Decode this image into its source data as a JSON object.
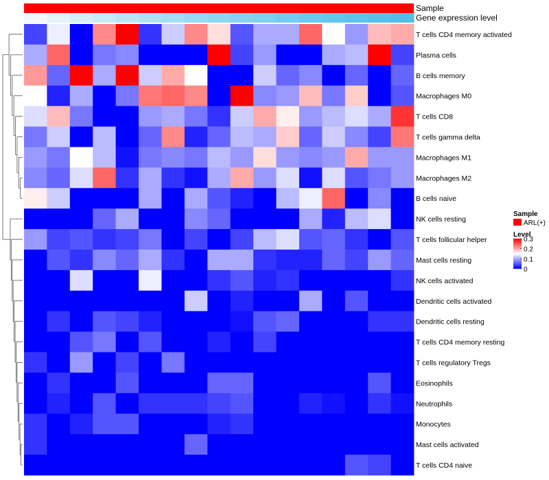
{
  "chart_data": {
    "type": "heatmap",
    "title": "",
    "annotations": {
      "sample_label": "Sample",
      "gene_label": "Gene expression level",
      "sample_color": "#ff0000",
      "gene_gradient": [
        "#f5f9fb",
        "#e4f3fa",
        "#d6eef8",
        "#c8e9f6",
        "#bbe5f5",
        "#b0e1f4",
        "#a5ddf3",
        "#9bd9f2",
        "#91d6f1",
        "#88d2f0",
        "#7fcfef",
        "#76cbee",
        "#6ec8ed",
        "#67c5ec",
        "#60c2eb",
        "#5ac0ea",
        "#55bde9",
        "#50bbe9"
      ]
    },
    "rows": [
      "T cells CD4 memory activated",
      "Plasma cells",
      "B cells memory",
      "Macrophages M0",
      "T cells CD8",
      "T cells gamma delta",
      "Macrophages M1",
      "Macrophages M2",
      "B cells naive",
      "NK cells resting",
      "T cells follicular helper",
      "Mast cells resting",
      "NK cells activated",
      "Dendritic cells activated",
      "Dendritic cells resting",
      "T cells CD4 memory resting",
      "T cells regulatory  Tregs",
      "Eosinophils",
      "Neutrophils",
      "Monocytes",
      "Mast cells activated",
      "T cells CD4 naive"
    ],
    "values": [
      [
        0.04,
        0.14,
        0.0,
        0.22,
        0.3,
        0.03,
        0.12,
        0.22,
        0.17,
        0.05,
        0.1,
        0.1,
        0.24,
        0.15,
        0.09,
        0.19,
        0.2
      ],
      [
        0.1,
        0.24,
        0.0,
        0.07,
        0.08,
        0.0,
        0.0,
        0.0,
        0.3,
        0.04,
        0.09,
        0.0,
        0.0,
        0.1,
        0.11,
        0.3,
        0.04
      ],
      [
        0.21,
        0.06,
        0.3,
        0.1,
        0.3,
        0.12,
        0.2,
        0.15,
        0.0,
        0.0,
        0.12,
        0.06,
        0.08,
        0.0,
        0.06,
        0.0,
        0.06
      ],
      [
        0.15,
        0.02,
        0.1,
        0.0,
        0.07,
        0.23,
        0.24,
        0.22,
        0.0,
        0.3,
        0.08,
        0.09,
        0.19,
        0.07,
        0.18,
        0.0,
        0.05
      ],
      [
        0.13,
        0.19,
        0.07,
        0.0,
        0.0,
        0.09,
        0.1,
        0.07,
        0.03,
        0.12,
        0.2,
        0.16,
        0.09,
        0.11,
        0.13,
        0.1,
        0.27
      ],
      [
        0.07,
        0.12,
        0.0,
        0.11,
        0.0,
        0.06,
        0.22,
        0.02,
        0.06,
        0.11,
        0.1,
        0.18,
        0.06,
        0.12,
        0.08,
        0.04,
        0.23
      ],
      [
        0.09,
        0.07,
        0.15,
        0.11,
        0.01,
        0.07,
        0.08,
        0.07,
        0.11,
        0.09,
        0.17,
        0.09,
        0.08,
        0.09,
        0.2,
        0.09,
        0.09
      ],
      [
        0.08,
        0.06,
        0.13,
        0.24,
        0.03,
        0.1,
        0.03,
        0.01,
        0.1,
        0.2,
        0.09,
        0.13,
        0.01,
        0.13,
        0.05,
        0.07,
        0.09
      ],
      [
        0.16,
        0.12,
        0.0,
        0.0,
        0.0,
        0.1,
        0.0,
        0.1,
        0.05,
        0.02,
        0.0,
        0.11,
        0.14,
        0.24,
        0.0,
        0.08,
        0.0
      ],
      [
        0.0,
        0.0,
        0.0,
        0.06,
        0.1,
        0.0,
        0.0,
        0.08,
        0.06,
        0.0,
        0.0,
        0.0,
        0.1,
        0.02,
        0.11,
        0.13,
        0.0
      ],
      [
        0.09,
        0.04,
        0.05,
        0.03,
        0.04,
        0.07,
        0.0,
        0.04,
        0.0,
        0.04,
        0.11,
        0.13,
        0.05,
        0.06,
        0.03,
        0.0,
        0.05
      ],
      [
        0.0,
        0.05,
        0.03,
        0.08,
        0.06,
        0.1,
        0.03,
        0.0,
        0.1,
        0.1,
        0.03,
        0.02,
        0.02,
        0.06,
        0.04,
        0.09,
        0.06
      ],
      [
        0.0,
        0.0,
        0.13,
        0.0,
        0.0,
        0.14,
        0.0,
        0.0,
        0.03,
        0.05,
        0.02,
        0.03,
        0.0,
        0.0,
        0.0,
        0.0,
        0.03
      ],
      [
        0.0,
        0.0,
        0.0,
        0.0,
        0.0,
        0.0,
        0.0,
        0.12,
        0.0,
        0.02,
        0.0,
        0.0,
        0.1,
        0.0,
        0.05,
        0.0,
        0.0
      ],
      [
        0.0,
        0.03,
        0.0,
        0.05,
        0.04,
        0.02,
        0.0,
        0.0,
        0.0,
        0.01,
        0.05,
        0.06,
        0.0,
        0.0,
        0.0,
        0.03,
        0.03
      ],
      [
        0.0,
        0.0,
        0.05,
        0.07,
        0.0,
        0.05,
        0.0,
        0.0,
        0.02,
        0.0,
        0.04,
        0.0,
        0.0,
        0.0,
        0.0,
        0.0,
        0.0
      ],
      [
        0.03,
        0.0,
        0.09,
        0.0,
        0.04,
        0.0,
        0.07,
        0.0,
        0.0,
        0.0,
        0.0,
        0.0,
        0.0,
        0.0,
        0.0,
        0.0,
        0.0
      ],
      [
        0.0,
        0.03,
        0.0,
        0.0,
        0.05,
        0.0,
        0.0,
        0.0,
        0.06,
        0.06,
        0.0,
        0.0,
        0.0,
        0.0,
        0.0,
        0.05,
        0.0
      ],
      [
        0.0,
        0.02,
        0.0,
        0.05,
        0.0,
        0.03,
        0.03,
        0.03,
        0.04,
        0.05,
        0.0,
        0.0,
        0.02,
        0.01,
        0.0,
        0.03,
        0.01
      ],
      [
        0.03,
        0.0,
        0.02,
        0.05,
        0.05,
        0.0,
        0.0,
        0.0,
        0.02,
        0.03,
        0.0,
        0.0,
        0.0,
        0.0,
        0.0,
        0.0,
        0.0
      ],
      [
        0.03,
        0.0,
        0.0,
        0.0,
        0.0,
        0.0,
        0.0,
        0.06,
        0.0,
        0.0,
        0.0,
        0.0,
        0.0,
        0.0,
        0.0,
        0.0,
        0.0
      ],
      [
        0.0,
        0.0,
        0.0,
        0.0,
        0.0,
        0.0,
        0.0,
        0.0,
        0.0,
        0.0,
        0.0,
        0.0,
        0.0,
        0.0,
        0.05,
        0.04,
        0.0
      ]
    ],
    "color_scale": {
      "min": 0,
      "max": 0.3,
      "colors": [
        "#0000ff",
        "#ffffff",
        "#ff0000"
      ],
      "ticks": [
        0,
        0.1,
        0.2,
        0.3
      ]
    },
    "legend": {
      "sample_title": "Sample",
      "sample_entry": "ARL(+)",
      "level_title": "Level"
    },
    "dendrogram": {
      "groups": [
        [
          0,
          1,
          2,
          3,
          4,
          5,
          6,
          7,
          8
        ],
        [
          9,
          10,
          11,
          12,
          13,
          14,
          15,
          16,
          17,
          18,
          19,
          20,
          21
        ]
      ]
    }
  }
}
